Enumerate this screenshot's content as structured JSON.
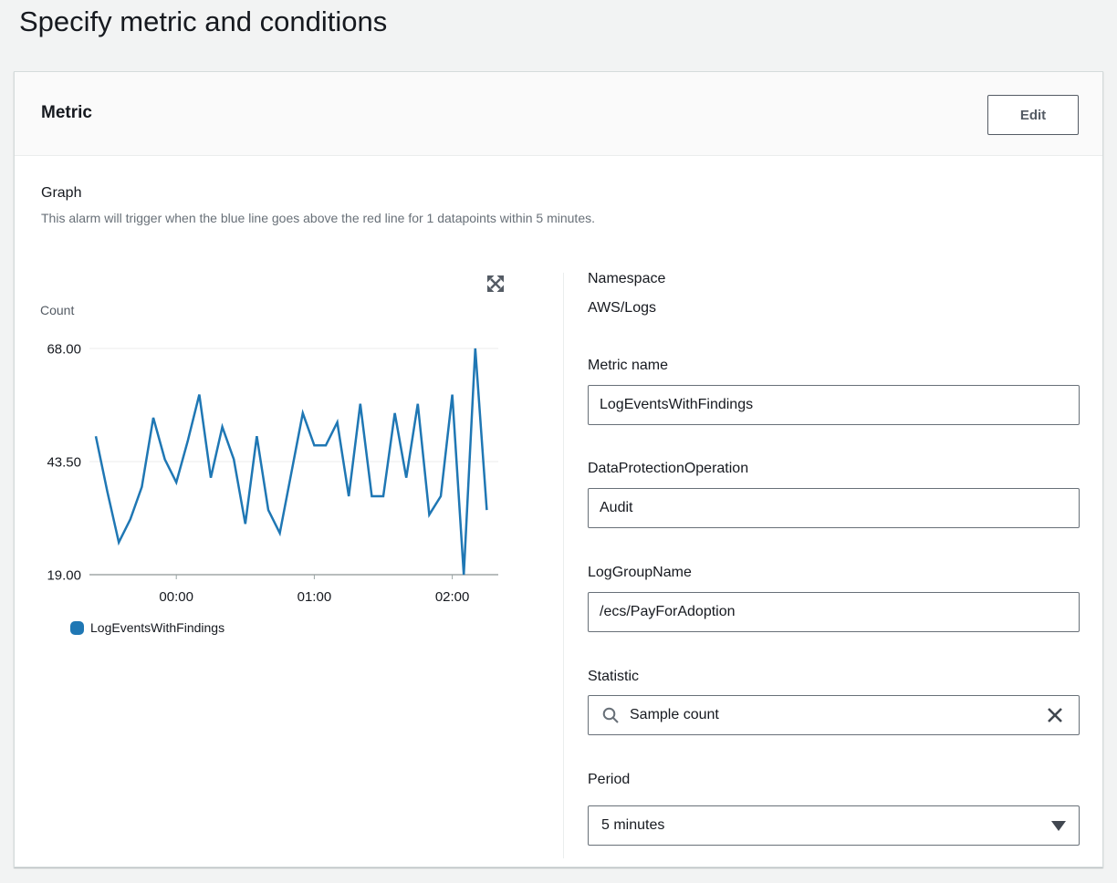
{
  "page": {
    "title": "Specify metric and conditions"
  },
  "metric_card": {
    "title": "Metric",
    "edit_button_label": "Edit",
    "graph_heading": "Graph",
    "graph_description": "This alarm will trigger when the blue line goes above the red line for 1 datapoints within 5 minutes.",
    "fields": {
      "namespace_label": "Namespace",
      "namespace_value": "AWS/Logs",
      "metric_name_label": "Metric name",
      "metric_name_value": "LogEventsWithFindings",
      "dimension1_label": "DataProtectionOperation",
      "dimension1_value": "Audit",
      "dimension2_label": "LogGroupName",
      "dimension2_value": "/ecs/PayForAdoption",
      "statistic_label": "Statistic",
      "statistic_value": "Sample count",
      "period_label": "Period",
      "period_value": "5 minutes"
    },
    "icons": {
      "expand": "expand-arrows-icon",
      "search": "search-icon",
      "clear": "clear-x-icon",
      "dropdown": "caret-down-icon"
    }
  },
  "chart_data": {
    "type": "line",
    "title": "",
    "xlabel": "",
    "ylabel": "Count",
    "ylim": [
      19,
      68
    ],
    "y_ticks": [
      68,
      43.5,
      19
    ],
    "x_ticks": [
      {
        "index": 7,
        "label": "00:00"
      },
      {
        "index": 19,
        "label": "01:00"
      },
      {
        "index": 31,
        "label": "02:00"
      }
    ],
    "grid": "horizontal",
    "legend_position": "bottom-left",
    "series": [
      {
        "name": "LogEventsWithFindings",
        "color": "#1f77b4",
        "values": [
          49,
          37,
          26,
          31,
          38,
          53,
          44,
          39,
          48,
          58,
          40,
          51,
          44,
          30,
          49,
          33,
          28,
          41,
          54,
          47,
          47,
          52,
          36,
          56,
          36,
          36,
          54,
          40,
          56,
          32,
          36,
          58,
          19,
          68,
          33
        ]
      }
    ]
  }
}
